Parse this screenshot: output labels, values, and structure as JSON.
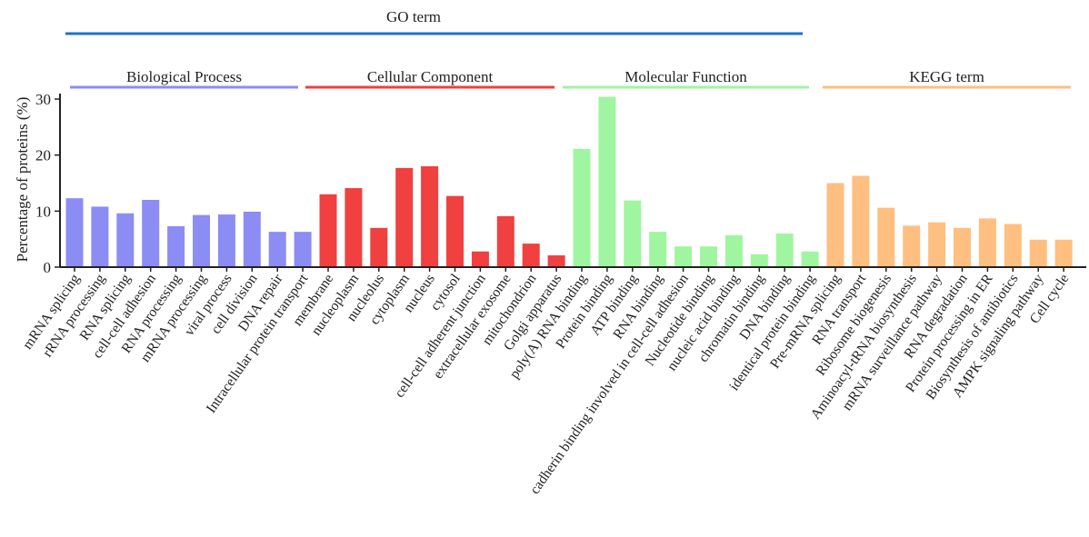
{
  "chart_data": {
    "type": "bar",
    "ylabel": "Percentage of proteins (%)",
    "ylim": [
      0,
      30
    ],
    "yticks": [
      "0",
      "10",
      "20",
      "30"
    ],
    "top_label": "GO term",
    "top_label_color": "#1a73c8",
    "groups": [
      {
        "name": "Biological Process",
        "color": "#8c8cf5",
        "categories": [
          "mRNA splicing",
          "rRNA processing",
          "RNA splicing",
          "cell-cell adhesion",
          "RNA processing",
          "mRNA processing",
          "viral process",
          "cell division",
          "DNA repair",
          "Intracellular protein transport"
        ],
        "values": [
          12.3,
          10.8,
          9.6,
          12.0,
          7.3,
          9.3,
          9.4,
          9.9,
          6.3,
          6.3
        ]
      },
      {
        "name": "Cellular Component",
        "color": "#f04040",
        "categories": [
          "membrane",
          "nucleoplasm",
          "nucleolus",
          "cytoplasm",
          "nucleus",
          "cytosol",
          "cell-cell adherent junction",
          "extracellular exosome",
          "mitochondrion",
          "Golgi apparatus"
        ],
        "values": [
          13.0,
          14.1,
          7.0,
          17.7,
          18.0,
          12.7,
          2.8,
          9.1,
          4.2,
          2.1
        ]
      },
      {
        "name": "Molecular Function",
        "color": "#a0f5a0",
        "categories": [
          "poly(A) RNA binding",
          "Protein binding",
          "ATP binding",
          "RNA binding",
          "cadherin binding involved in cell-cell adhesion",
          "Nucleotide binding",
          "nucleic acid binding",
          "chromatin binding",
          "DNA binding",
          "identical protein binding"
        ],
        "values": [
          21.1,
          30.4,
          11.9,
          6.3,
          3.7,
          3.7,
          5.7,
          2.3,
          6.0,
          2.8
        ]
      },
      {
        "name": "KEGG term",
        "color": "#ffbf80",
        "categories": [
          "Pre-mRNA splicing",
          "RNA transport",
          "Ribosome biogenesis",
          "Aminoacyl-tRNA biosynthesis",
          "mRNA surveillance pathway",
          "RNA degradation",
          "Protein processing in ER",
          "Biosynthesis of antibiotics",
          "AMPK signaling pathway",
          "Cell cycle"
        ],
        "values": [
          15.0,
          16.3,
          10.6,
          7.4,
          8.0,
          7.0,
          8.7,
          7.7,
          4.9,
          4.9
        ]
      }
    ]
  }
}
